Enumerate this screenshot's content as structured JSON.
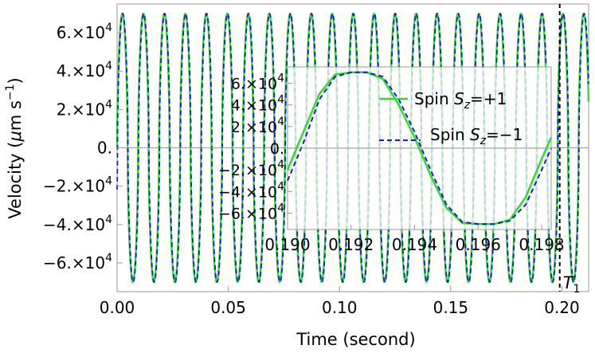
{
  "colors": {
    "spin_up": "#33dd33",
    "spin_down": "#1a1acc",
    "marker": "#000000",
    "frame": "#999999"
  },
  "chart_data": [
    {
      "type": "line",
      "xlabel": "Time (second)",
      "ylabel": "Velocity (μm s⁻¹)",
      "xlim": [
        0,
        0.212
      ],
      "ylim": [
        -75000,
        75000
      ],
      "x_ticks": [
        0.0,
        0.05,
        0.1,
        0.15,
        0.2
      ],
      "x_tick_labels": [
        "0.00",
        "0.05",
        "0.10",
        "0.15",
        "0.20"
      ],
      "y_ticks": [
        60000,
        40000,
        20000,
        0,
        -20000,
        -40000,
        -60000
      ],
      "y_tick_labels": [
        "6.×10^4",
        "4.×10^4",
        "2.×10^4",
        "0.",
        "−2.×10^4",
        "−4.×10^4",
        "−6.×10^4"
      ],
      "amplitude": 70000,
      "period": 0.00943,
      "series": [
        {
          "name": "Spin S_z=+1",
          "style": "solid"
        },
        {
          "name": "Spin S_z=−1",
          "style": "dashed"
        }
      ],
      "vline": {
        "x": 0.199,
        "label": "T_1"
      }
    },
    {
      "type": "line",
      "xlim": [
        0.19,
        0.1983
      ],
      "ylim": [
        -75000,
        75000
      ],
      "x_ticks": [
        0.19,
        0.192,
        0.194,
        0.196,
        0.198
      ],
      "x_tick_labels": [
        "0.190",
        "0.192",
        "0.194",
        "0.196",
        "0.198"
      ],
      "y_ticks": [
        60000,
        40000,
        20000,
        0,
        -20000,
        -40000,
        -60000
      ],
      "y_tick_labels": [
        "6.×10^4",
        "4.×10^4",
        "2.×10^4",
        "0.",
        "−2.×10^4",
        "−4.×10^4",
        "−6.×10^4"
      ],
      "plateau": 70000,
      "series": [
        {
          "name": "Spin S_z=+1",
          "style": "solid",
          "points": [
            [
              0.19,
              -20000
            ],
            [
              0.1905,
              15000
            ],
            [
              0.191,
              50000
            ],
            [
              0.1915,
              68000
            ],
            [
              0.192,
              70000
            ],
            [
              0.1925,
              70000
            ],
            [
              0.193,
              64000
            ],
            [
              0.1935,
              40000
            ],
            [
              0.194,
              10000
            ],
            [
              0.1945,
              -25000
            ],
            [
              0.195,
              -55000
            ],
            [
              0.1955,
              -69000
            ],
            [
              0.196,
              -70000
            ],
            [
              0.1965,
              -70000
            ],
            [
              0.197,
              -66000
            ],
            [
              0.1975,
              -45000
            ],
            [
              0.198,
              -10000
            ],
            [
              0.1983,
              10000
            ]
          ]
        },
        {
          "name": "Spin S_z=−1",
          "style": "dashed",
          "points": [
            [
              0.19,
              -30000
            ],
            [
              0.1905,
              5000
            ],
            [
              0.191,
              45000
            ],
            [
              0.1915,
              66000
            ],
            [
              0.192,
              70000
            ],
            [
              0.1925,
              70000
            ],
            [
              0.193,
              66000
            ],
            [
              0.1935,
              45000
            ],
            [
              0.194,
              15000
            ],
            [
              0.1945,
              -20000
            ],
            [
              0.195,
              -52000
            ],
            [
              0.1955,
              -68000
            ],
            [
              0.196,
              -70000
            ],
            [
              0.1965,
              -70000
            ],
            [
              0.197,
              -67000
            ],
            [
              0.1975,
              -52000
            ],
            [
              0.198,
              -20000
            ],
            [
              0.1983,
              0
            ]
          ]
        }
      ]
    }
  ]
}
